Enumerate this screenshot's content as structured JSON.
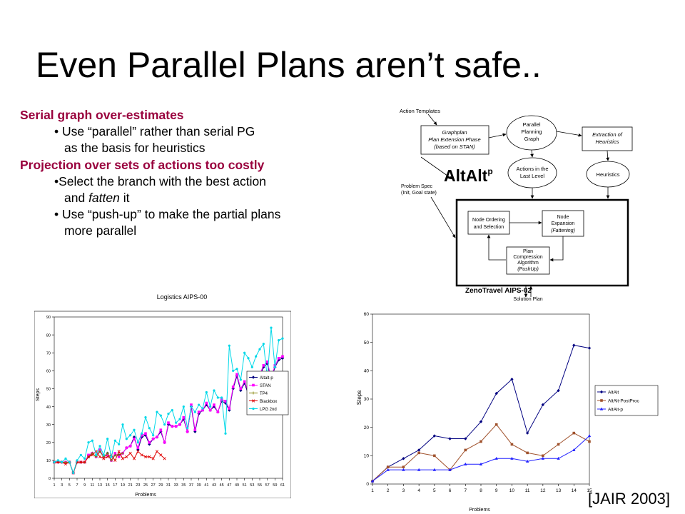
{
  "slide": {
    "title": "Even Parallel Plans aren’t safe..",
    "citation": "[JAIR 2003]"
  },
  "bullets": {
    "h1": "Serial graph over-estimates",
    "b1a": "• Use “parallel” rather than serial PG",
    "b1b": "as the basis for heuristics",
    "h2": "Projection over sets of actions too costly",
    "b2a": "•Select the branch with the best action",
    "b2b_pre": "and ",
    "b2b_em": "fatten",
    "b2b_post": " it",
    "b3a": "• Use “push-up” to make the partial plans",
    "b3b": "more parallel"
  },
  "diagram": {
    "action_templates": "Action Templates",
    "graphplan_l1": "Graphplan",
    "graphplan_l2": "Plan Extension Phase",
    "graphplan_l3": "(based on STAN)",
    "ppg_l1": "Parallel",
    "ppg_l2": "Planning",
    "ppg_l3": "Graph",
    "extraction_l1": "Extraction of",
    "extraction_l2": "Heuristics",
    "actions_l1": "Actions in the",
    "actions_l2": "Last Level",
    "heuristics": "Heuristics",
    "altalt": "AltAlt",
    "altalt_sup": "p",
    "problem_l1": "Problem Spec",
    "problem_l2": "(Init, Goal state)",
    "node_ord_l1": "Node Ordering",
    "node_ord_l2": "and Selection",
    "node_exp_l1": "Node",
    "node_exp_l2": "Expansion",
    "node_exp_l3": "(Fattening)",
    "pca_l1": "Plan",
    "pca_l2": "Compression",
    "pca_l3": "Algorithm",
    "pca_l4": "(PushUp)",
    "zeno": "ZenoTravel AIPS-02",
    "solution": "Solution Plan"
  },
  "chart_data": [
    {
      "type": "line",
      "title": "Logistics AIPS-00",
      "xlabel": "Problems",
      "ylabel": "Steps",
      "ylim": [
        0,
        90
      ],
      "yticks": [
        0,
        10,
        20,
        30,
        40,
        50,
        60,
        70,
        80,
        90
      ],
      "x": [
        1,
        2,
        3,
        4,
        5,
        6,
        7,
        8,
        9,
        10,
        11,
        12,
        13,
        14,
        15,
        16,
        17,
        18,
        19,
        20,
        21,
        22,
        23,
        24,
        25,
        26,
        27,
        28,
        29,
        30,
        31,
        32,
        33,
        34,
        35,
        36,
        37,
        38,
        39,
        40,
        41,
        42,
        43,
        44,
        45,
        46,
        47,
        48,
        49,
        50,
        51,
        52,
        53,
        54,
        55,
        56,
        57,
        58,
        59,
        60,
        61
      ],
      "xtick_labels": [
        "1",
        "3",
        "5",
        "7",
        "9",
        "11",
        "13",
        "15",
        "17",
        "19",
        "21",
        "23",
        "25",
        "27",
        "29",
        "31",
        "33",
        "35",
        "37",
        "39",
        "41",
        "43",
        "45",
        "47",
        "49",
        "51",
        "53",
        "55",
        "57",
        "59",
        "61"
      ],
      "legend": "right",
      "series": [
        {
          "name": "Altalt-p",
          "color": "#000080",
          "values": [
            9,
            9,
            9,
            9,
            9,
            3,
            9,
            9,
            9,
            12,
            14,
            12,
            15,
            12,
            14,
            10,
            13,
            13,
            14,
            17,
            18,
            23,
            16,
            23,
            24,
            19,
            22,
            23,
            26,
            20,
            30,
            29,
            29,
            30,
            33,
            26,
            40,
            26,
            36,
            38,
            41,
            38,
            40,
            37,
            43,
            42,
            38,
            50,
            57,
            49,
            53,
            47,
            51,
            50,
            57,
            62,
            64,
            55,
            62,
            66,
            67
          ]
        },
        {
          "name": "STAN",
          "color": "#ff00ff",
          "values": [
            9,
            9,
            9,
            9,
            9,
            3,
            9,
            9,
            9,
            13,
            14,
            12,
            16,
            12,
            13,
            10,
            14,
            12,
            14,
            17,
            18,
            22,
            17,
            24,
            25,
            20,
            22,
            23,
            27,
            20,
            31,
            29,
            29,
            30,
            34,
            26,
            41,
            27,
            37,
            38,
            42,
            38,
            41,
            37,
            44,
            43,
            39,
            51,
            58,
            50,
            54,
            48,
            52,
            51,
            58,
            63,
            65,
            56,
            63,
            67,
            68
          ]
        },
        {
          "name": "TP4",
          "color": "#808000",
          "values": [
            9,
            9,
            9,
            9,
            9,
            3,
            9,
            9,
            9,
            12,
            14,
            12,
            15,
            12,
            14,
            10,
            13,
            13,
            14,
            null,
            null,
            null,
            null,
            null,
            null,
            null,
            null,
            null,
            null,
            null,
            null,
            null,
            null,
            null,
            null,
            null,
            null,
            null,
            null,
            null,
            null,
            null,
            null,
            null,
            null,
            null,
            null,
            null,
            null,
            null,
            null,
            null,
            null,
            null,
            null,
            null,
            null,
            null,
            null,
            null,
            null
          ]
        },
        {
          "name": "Blackbox",
          "color": "#e00000",
          "values": [
            9,
            9,
            9,
            8,
            9,
            3,
            9,
            9,
            9,
            12,
            13,
            15,
            12,
            11,
            12,
            13,
            10,
            15,
            11,
            12,
            14,
            11,
            15,
            13,
            12,
            12,
            11,
            15,
            13,
            11,
            null,
            null,
            null,
            null,
            null,
            null,
            null,
            null,
            null,
            null,
            null,
            null,
            null,
            null,
            null,
            null,
            null,
            null,
            null,
            null,
            null,
            null,
            null,
            null,
            null,
            null,
            null,
            null,
            null,
            null,
            null
          ]
        },
        {
          "name": "LPG 2nd",
          "color": "#00d8e8",
          "values": [
            9,
            10,
            9,
            11,
            9,
            3,
            10,
            13,
            11,
            20,
            21,
            13,
            18,
            13,
            22,
            12,
            21,
            19,
            30,
            22,
            24,
            27,
            20,
            25,
            34,
            28,
            24,
            37,
            35,
            30,
            36,
            38,
            31,
            33,
            40,
            28,
            40,
            37,
            41,
            39,
            48,
            40,
            49,
            45,
            45,
            25,
            74,
            60,
            61,
            55,
            70,
            67,
            62,
            68,
            72,
            75,
            56,
            84,
            62,
            77,
            78
          ]
        }
      ]
    },
    {
      "type": "line",
      "title": "",
      "xlabel": "Problems",
      "ylabel": "Steps",
      "ylim": [
        0,
        60
      ],
      "yticks": [
        0,
        10,
        20,
        30,
        40,
        50,
        60
      ],
      "x": [
        1,
        2,
        3,
        4,
        5,
        6,
        7,
        8,
        9,
        10,
        11,
        12,
        13,
        14,
        15
      ],
      "xtick_labels": [
        "1",
        "2",
        "3",
        "4",
        "5",
        "6",
        "7",
        "8",
        "9",
        "10",
        "11",
        "12",
        "13",
        "14",
        "15"
      ],
      "legend": "right",
      "series": [
        {
          "name": "AltAlt",
          "color": "#000080",
          "values": [
            1,
            6,
            9,
            12,
            17,
            16,
            16,
            22,
            32,
            37,
            18,
            28,
            33,
            49,
            48
          ]
        },
        {
          "name": "AltAlt-PostProc",
          "color": "#a0522d",
          "values": [
            1,
            6,
            6,
            11,
            10,
            5,
            12,
            15,
            21,
            14,
            11,
            10,
            14,
            18,
            15
          ]
        },
        {
          "name": "AltAlt-p",
          "color": "#2020ff",
          "values": [
            1,
            5,
            5,
            5,
            5,
            5,
            7,
            7,
            9,
            9,
            8,
            9,
            9,
            12,
            17
          ]
        }
      ]
    }
  ]
}
